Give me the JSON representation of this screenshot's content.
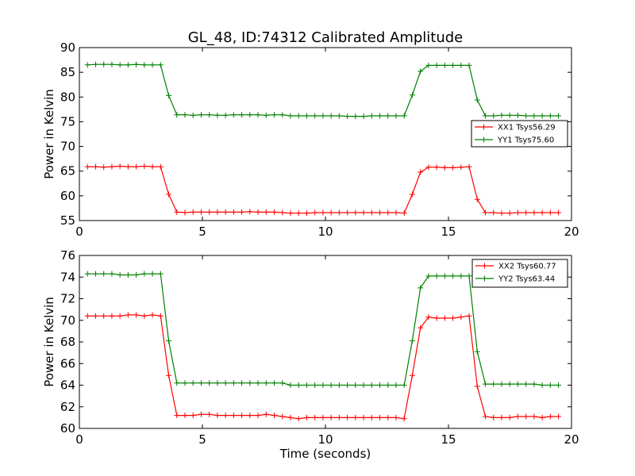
{
  "title": "GL_48, ID:74312 Calibrated Amplitude",
  "chart_data": [
    {
      "type": "line",
      "xlabel": "",
      "ylabel": "Power in Kelvin",
      "xlim": [
        0,
        20
      ],
      "ylim": [
        55,
        90
      ],
      "xticks": [
        0,
        5,
        10,
        15,
        20
      ],
      "yticks": [
        55,
        60,
        65,
        70,
        75,
        80,
        85,
        90
      ],
      "legend_position": "center-right",
      "x": [
        0.33,
        0.66,
        0.99,
        1.32,
        1.65,
        1.98,
        2.31,
        2.64,
        2.97,
        3.3,
        3.63,
        3.96,
        4.29,
        4.62,
        4.95,
        5.28,
        5.61,
        5.94,
        6.27,
        6.6,
        6.93,
        7.26,
        7.59,
        7.92,
        8.25,
        8.58,
        8.91,
        9.24,
        9.57,
        9.9,
        10.23,
        10.56,
        10.89,
        11.22,
        11.55,
        11.88,
        12.21,
        12.54,
        12.87,
        13.2,
        13.53,
        13.86,
        14.19,
        14.52,
        14.85,
        15.18,
        15.51,
        15.84,
        16.17,
        16.5,
        16.83,
        17.16,
        17.49,
        17.82,
        18.15,
        18.48,
        18.81,
        19.14,
        19.47
      ],
      "series": [
        {
          "name": "XX1 Tsys56.29",
          "color": "#ff0000",
          "values": [
            65.9,
            65.9,
            65.8,
            65.9,
            66.0,
            65.9,
            65.9,
            66.0,
            65.9,
            65.9,
            60.3,
            56.7,
            56.6,
            56.7,
            56.7,
            56.7,
            56.7,
            56.7,
            56.7,
            56.7,
            56.8,
            56.7,
            56.7,
            56.7,
            56.6,
            56.5,
            56.5,
            56.5,
            56.6,
            56.6,
            56.6,
            56.6,
            56.6,
            56.6,
            56.6,
            56.6,
            56.6,
            56.6,
            56.6,
            56.5,
            60.3,
            64.8,
            65.8,
            65.8,
            65.7,
            65.7,
            65.8,
            65.9,
            59.3,
            56.6,
            56.6,
            56.5,
            56.5,
            56.6,
            56.6,
            56.6,
            56.6,
            56.6,
            56.6
          ]
        },
        {
          "name": "YY1 Tsys75.60",
          "color": "#008000",
          "values": [
            86.5,
            86.6,
            86.6,
            86.6,
            86.5,
            86.5,
            86.6,
            86.5,
            86.5,
            86.5,
            80.3,
            76.4,
            76.4,
            76.3,
            76.4,
            76.4,
            76.3,
            76.3,
            76.4,
            76.4,
            76.4,
            76.4,
            76.3,
            76.4,
            76.4,
            76.2,
            76.2,
            76.2,
            76.2,
            76.2,
            76.2,
            76.2,
            76.1,
            76.1,
            76.1,
            76.2,
            76.2,
            76.2,
            76.2,
            76.2,
            80.4,
            85.2,
            86.4,
            86.4,
            86.4,
            86.4,
            86.4,
            86.4,
            79.4,
            76.2,
            76.2,
            76.3,
            76.3,
            76.3,
            76.2,
            76.2,
            76.2,
            76.2,
            76.2
          ]
        }
      ]
    },
    {
      "type": "line",
      "xlabel": "Time (seconds)",
      "ylabel": "Power in Kelvin",
      "xlim": [
        0,
        20
      ],
      "ylim": [
        60,
        76
      ],
      "xticks": [
        0,
        5,
        10,
        15,
        20
      ],
      "yticks": [
        60,
        62,
        64,
        66,
        68,
        70,
        72,
        74,
        76
      ],
      "legend_position": "top-right",
      "x": [
        0.33,
        0.66,
        0.99,
        1.32,
        1.65,
        1.98,
        2.31,
        2.64,
        2.97,
        3.3,
        3.63,
        3.96,
        4.29,
        4.62,
        4.95,
        5.28,
        5.61,
        5.94,
        6.27,
        6.6,
        6.93,
        7.26,
        7.59,
        7.92,
        8.25,
        8.58,
        8.91,
        9.24,
        9.57,
        9.9,
        10.23,
        10.56,
        10.89,
        11.22,
        11.55,
        11.88,
        12.21,
        12.54,
        12.87,
        13.2,
        13.53,
        13.86,
        14.19,
        14.52,
        14.85,
        15.18,
        15.51,
        15.84,
        16.17,
        16.5,
        16.83,
        17.16,
        17.49,
        17.82,
        18.15,
        18.48,
        18.81,
        19.14,
        19.47
      ],
      "series": [
        {
          "name": "XX2 Tsys60.77",
          "color": "#ff0000",
          "values": [
            70.4,
            70.4,
            70.4,
            70.4,
            70.4,
            70.5,
            70.5,
            70.4,
            70.5,
            70.4,
            64.9,
            61.2,
            61.2,
            61.2,
            61.3,
            61.3,
            61.2,
            61.2,
            61.2,
            61.2,
            61.2,
            61.2,
            61.3,
            61.2,
            61.1,
            61.0,
            60.9,
            61.0,
            61.0,
            61.0,
            61.0,
            61.0,
            61.0,
            61.0,
            61.0,
            61.0,
            61.0,
            61.0,
            61.0,
            60.9,
            64.9,
            69.3,
            70.3,
            70.2,
            70.2,
            70.2,
            70.3,
            70.4,
            63.9,
            61.1,
            61.0,
            61.0,
            61.0,
            61.1,
            61.1,
            61.1,
            61.0,
            61.1,
            61.1
          ]
        },
        {
          "name": "YY2 Tsys63.44",
          "color": "#008000",
          "values": [
            74.3,
            74.3,
            74.3,
            74.3,
            74.2,
            74.2,
            74.2,
            74.3,
            74.3,
            74.3,
            68.1,
            64.2,
            64.2,
            64.2,
            64.2,
            64.2,
            64.2,
            64.2,
            64.2,
            64.2,
            64.2,
            64.2,
            64.2,
            64.2,
            64.2,
            64.0,
            64.0,
            64.0,
            64.0,
            64.0,
            64.0,
            64.0,
            64.0,
            64.0,
            64.0,
            64.0,
            64.0,
            64.0,
            64.0,
            64.0,
            68.1,
            73.0,
            74.1,
            74.1,
            74.1,
            74.1,
            74.1,
            74.1,
            67.1,
            64.1,
            64.1,
            64.1,
            64.1,
            64.1,
            64.1,
            64.1,
            64.0,
            64.0,
            64.0
          ]
        }
      ]
    }
  ]
}
